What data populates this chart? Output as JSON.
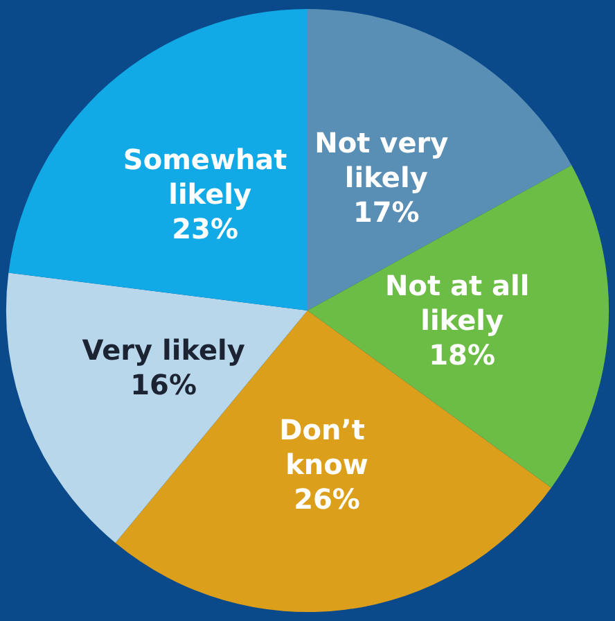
{
  "chart_data": {
    "type": "pie",
    "categories": [
      "Not very likely",
      "Not at all likely",
      "Don’t know",
      "Very likely",
      "Somewhat likely"
    ],
    "values": [
      17,
      18,
      26,
      16,
      23
    ],
    "colors": [
      "#5a8fb5",
      "#6cbd45",
      "#dc9f1c",
      "#b9d7ea",
      "#12aae6"
    ],
    "value_labels": [
      "17%",
      "18%",
      "26%",
      "16%",
      "23%"
    ]
  }
}
